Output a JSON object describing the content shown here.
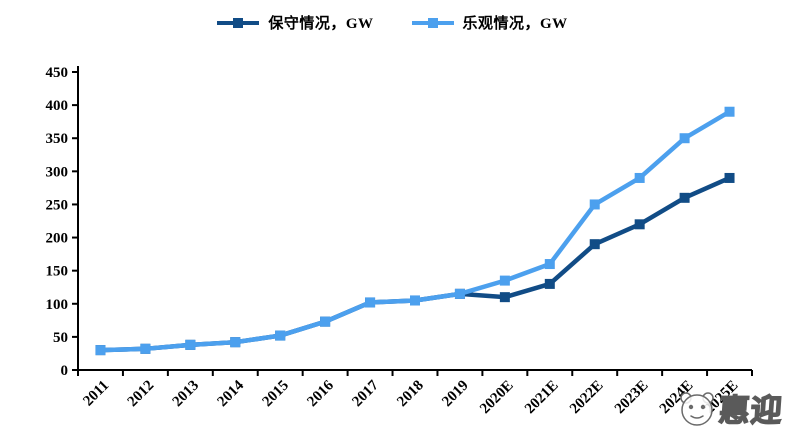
{
  "legend": {
    "items": [
      {
        "label": "保守情况，GW"
      },
      {
        "label": "乐观情况，GW"
      }
    ]
  },
  "watermark": {
    "text": "惠迎",
    "face_icon": "panda-face"
  },
  "colors": {
    "conservative": "#114C86",
    "optimistic": "#4CA0EE",
    "axis": "#000000",
    "watermark_gray": "#5a5a5a"
  },
  "chart_data": {
    "type": "line",
    "title": "",
    "xlabel": "",
    "ylabel": "",
    "categories": [
      "2011",
      "2012",
      "2013",
      "2014",
      "2015",
      "2016",
      "2017",
      "2018",
      "2019",
      "2020E",
      "2021E",
      "2022E",
      "2023E",
      "2024E",
      "2025E"
    ],
    "series": [
      {
        "name": "保守情况，GW",
        "color": "#114C86",
        "values": [
          30,
          32,
          38,
          42,
          52,
          73,
          102,
          105,
          115,
          110,
          130,
          190,
          220,
          260,
          290
        ]
      },
      {
        "name": "乐观情况，GW",
        "color": "#4CA0EE",
        "values": [
          30,
          32,
          38,
          42,
          52,
          73,
          102,
          105,
          115,
          135,
          160,
          250,
          290,
          350,
          390
        ]
      }
    ],
    "ylim": [
      0,
      450
    ],
    "ytick_step": 50,
    "yticks": [
      0,
      50,
      100,
      150,
      200,
      250,
      300,
      350,
      400,
      450
    ],
    "grid": false,
    "legend_position": "top-center",
    "marker": "square",
    "x_label_rotation": -45
  }
}
